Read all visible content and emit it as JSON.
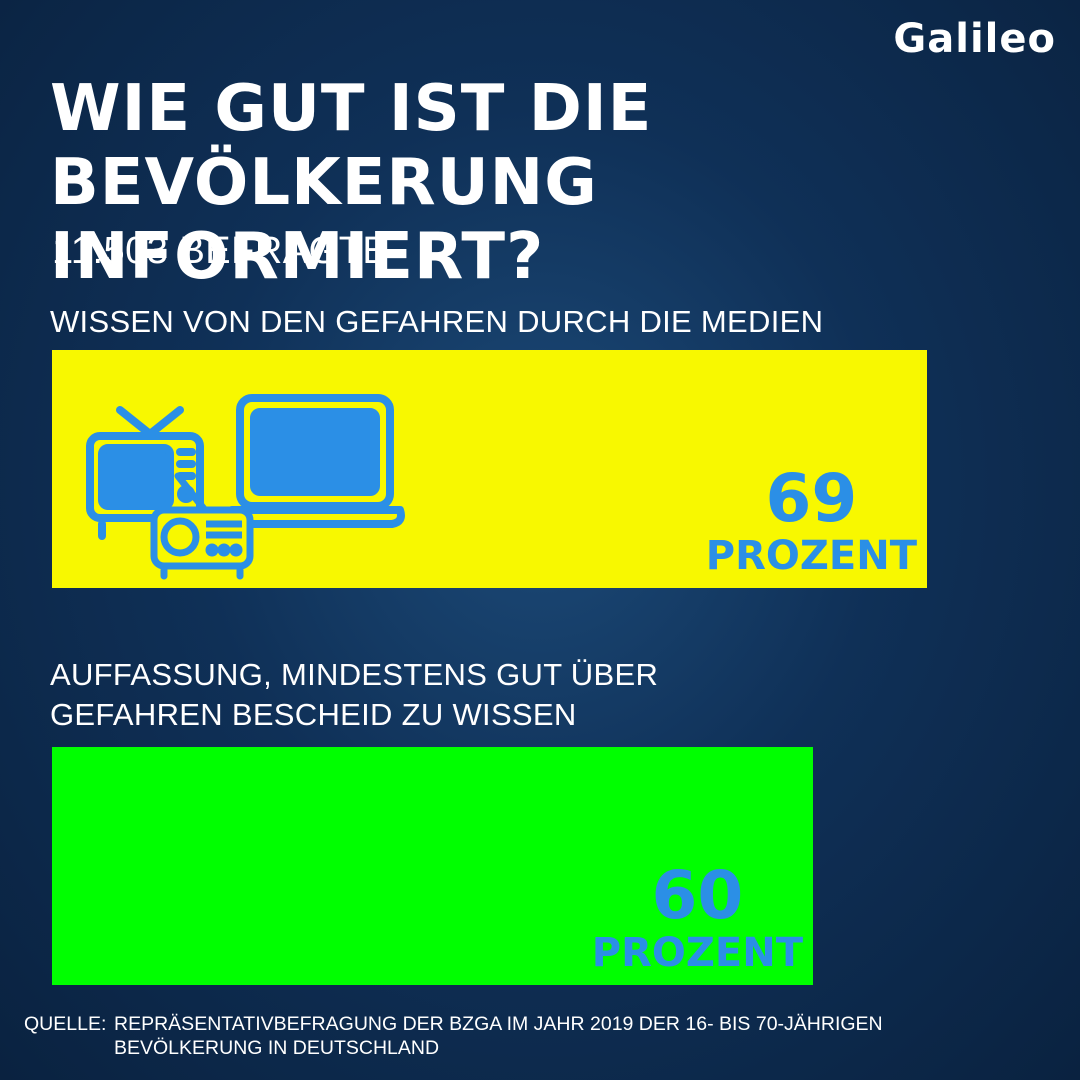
{
  "brand": {
    "logo": "Galileo"
  },
  "header": {
    "title_line1": "WIE GUT IST DIE",
    "title_line2": "BEVÖLKERUNG INFORMIERT?",
    "subtitle": "11.503 BEFRAGTE"
  },
  "chart_data": {
    "type": "bar",
    "orientation": "horizontal",
    "unit": "PROZENT",
    "xlim": [
      0,
      100
    ],
    "colors": {
      "bar_1": "#f8f800",
      "bar_2": "#00ff00",
      "value_text": "#2b8fe6"
    },
    "bars": [
      {
        "label": "WISSEN VON DEN GEFAHREN DURCH DIE MEDIEN",
        "value": 69,
        "value_label": "69",
        "unit_label": "PROZENT",
        "icons": [
          "tv-icon",
          "laptop-icon",
          "radio-icon"
        ]
      },
      {
        "label_line1": "AUFFASSUNG, MINDESTENS GUT ÜBER",
        "label_line2": "GEFAHREN BESCHEID ZU WISSEN",
        "value": 60,
        "value_label": "60",
        "unit_label": "PROZENT"
      }
    ]
  },
  "footer": {
    "source_label": "QUELLE:",
    "source_line1": "REPRÄSENTATIVBEFRAGUNG DER BZGA IM JAHR 2019 DER 16- BIS 70-JÄHRIGEN",
    "source_line2": "BEVÖLKERUNG IN DEUTSCHLAND"
  }
}
